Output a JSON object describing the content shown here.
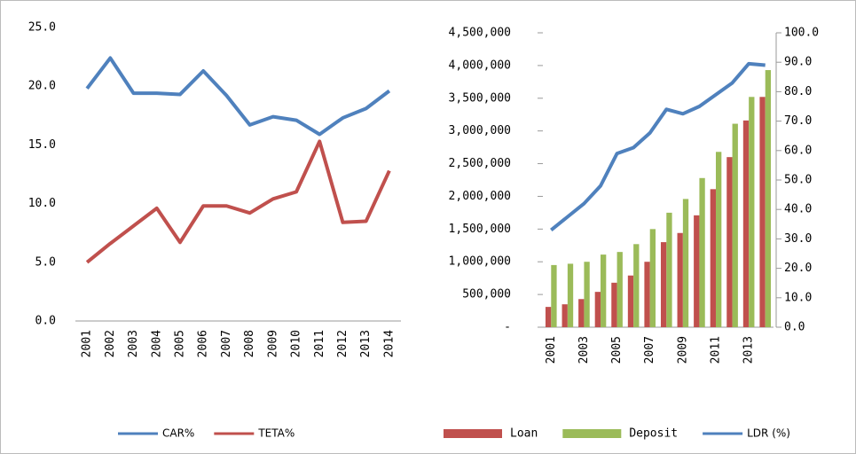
{
  "chart_data": [
    {
      "type": "line",
      "categories": [
        "2001",
        "2002",
        "2003",
        "2004",
        "2005",
        "2006",
        "2007",
        "2008",
        "2009",
        "2010",
        "2011",
        "2012",
        "2013",
        "2014"
      ],
      "series": [
        {
          "name": "CAR%",
          "color": "#4f81bd",
          "values": [
            19.8,
            22.4,
            19.4,
            19.4,
            19.3,
            21.3,
            19.2,
            16.7,
            17.4,
            17.1,
            15.9,
            17.3,
            18.1,
            19.6
          ]
        },
        {
          "name": "TETA%",
          "color": "#c0504d",
          "values": [
            5.0,
            6.6,
            8.1,
            9.6,
            6.7,
            9.8,
            9.8,
            9.2,
            10.4,
            11.0,
            15.3,
            8.4,
            8.5,
            12.8
          ]
        }
      ],
      "ylim": [
        0,
        25
      ],
      "yticks": [
        {
          "value": 0,
          "label": "0.0"
        },
        {
          "value": 5,
          "label": "5.0"
        },
        {
          "value": 10,
          "label": "10.0"
        },
        {
          "value": 15,
          "label": "15.0"
        },
        {
          "value": 20,
          "label": "20.0"
        },
        {
          "value": 25,
          "label": "25.0"
        }
      ]
    },
    {
      "type": "bar",
      "categories": [
        "2001",
        null,
        "2003",
        null,
        "2005",
        null,
        "2007",
        null,
        "2009",
        null,
        "2011",
        null,
        "2013",
        null
      ],
      "series": [
        {
          "name": "Loan",
          "color": "#c0504d",
          "values": [
            310000,
            350000,
            430000,
            540000,
            680000,
            790000,
            1000000,
            1300000,
            1440000,
            1710000,
            2110000,
            2600000,
            3160000,
            3520000
          ]
        },
        {
          "name": "Deposit",
          "color": "#9bbb59",
          "values": [
            950000,
            970000,
            1000000,
            1110000,
            1150000,
            1270000,
            1500000,
            1750000,
            1960000,
            2280000,
            2680000,
            3110000,
            3520000,
            3930000
          ]
        },
        {
          "name": "LDR (%)",
          "color": "#4f81bd",
          "type": "line",
          "axis": "y2",
          "values": [
            33,
            37.5,
            42,
            48,
            59,
            61,
            66,
            74,
            72.5,
            75,
            79,
            83,
            89.5,
            89
          ]
        }
      ],
      "ylim": [
        0,
        4500000
      ],
      "yticks": [
        {
          "value": 0,
          "label": "-"
        },
        {
          "value": 500000,
          "label": "500,000"
        },
        {
          "value": 1000000,
          "label": "1,000,000"
        },
        {
          "value": 1500000,
          "label": "1,500,000"
        },
        {
          "value": 2000000,
          "label": "2,000,000"
        },
        {
          "value": 2500000,
          "label": "2,500,000"
        },
        {
          "value": 3000000,
          "label": "3,000,000"
        },
        {
          "value": 3500000,
          "label": "3,500,000"
        },
        {
          "value": 4000000,
          "label": "4,000,000"
        },
        {
          "value": 4500000,
          "label": "4,500,000"
        }
      ],
      "y2lim": [
        0,
        100
      ],
      "y2ticks": [
        {
          "value": 0,
          "label": "0.0"
        },
        {
          "value": 10,
          "label": "10.0"
        },
        {
          "value": 20,
          "label": "20.0"
        },
        {
          "value": 30,
          "label": "30.0"
        },
        {
          "value": 40,
          "label": "40.0"
        },
        {
          "value": 50,
          "label": "50.0"
        },
        {
          "value": 60,
          "label": "60.0"
        },
        {
          "value": 70,
          "label": "70.0"
        },
        {
          "value": 80,
          "label": "80.0"
        },
        {
          "value": 90,
          "label": "90.0"
        },
        {
          "value": 100,
          "label": "100.0"
        }
      ]
    }
  ]
}
